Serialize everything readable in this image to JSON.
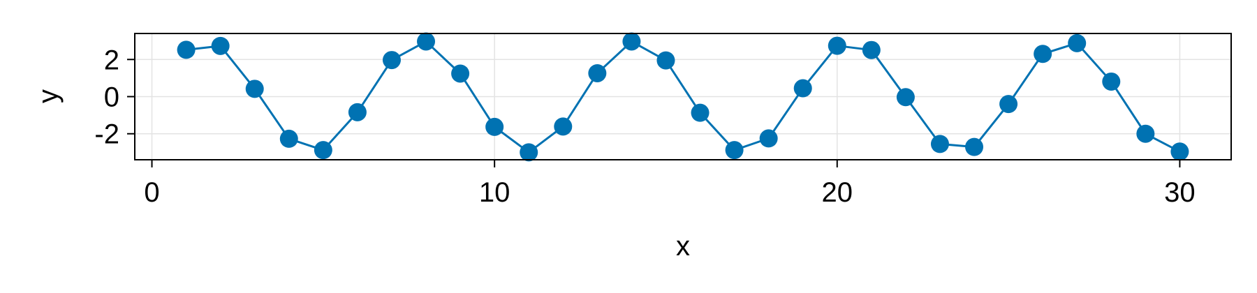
{
  "chart_data": {
    "type": "scatter",
    "title": "",
    "xlabel": "x",
    "ylabel": "y",
    "xlim": [
      -0.5,
      31.5
    ],
    "ylim": [
      -3.4,
      3.4
    ],
    "grid": true,
    "x_ticks": [
      0,
      10,
      20,
      30
    ],
    "y_ticks": [
      -2,
      0,
      2
    ],
    "x_tick_labels": [
      "0",
      "10",
      "20",
      "30"
    ],
    "y_tick_labels": [
      "-2",
      "0",
      "2"
    ],
    "series": [
      {
        "style": "scatter-line",
        "color": "#0072b2",
        "x": [
          1,
          2,
          3,
          4,
          5,
          6,
          7,
          8,
          9,
          10,
          11,
          12,
          13,
          14,
          15,
          16,
          17,
          18,
          19,
          20,
          21,
          22,
          23,
          24,
          25,
          26,
          27,
          28,
          29,
          30
        ],
        "values": [
          2.52,
          2.73,
          0.42,
          -2.27,
          -2.88,
          -0.84,
          1.97,
          2.97,
          1.24,
          -1.63,
          -3.0,
          -1.61,
          1.26,
          2.97,
          1.95,
          -0.87,
          -2.88,
          -2.25,
          0.45,
          2.74,
          2.51,
          -0.03,
          -2.55,
          -2.71,
          -0.4,
          2.3,
          2.88,
          0.81,
          -2.0,
          -2.96
        ]
      }
    ]
  }
}
